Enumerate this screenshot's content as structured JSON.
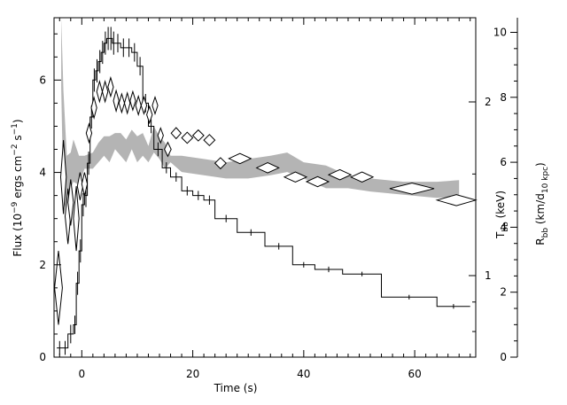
{
  "chart_data": {
    "type": "line",
    "xlabel": "Time (s)",
    "ylabel_left": {
      "main": "Flux (10",
      "sup1": "−9",
      "mid": " ergs cm",
      "sup2": "−2",
      "mid2": " s",
      "sup3": "−1",
      "end": ")"
    },
    "ylabel_right1": {
      "main": "T",
      "sub": "bb",
      "end": " (keV)"
    },
    "ylabel_right2": {
      "main": "R",
      "sub": "bb",
      "mid": " (km/d",
      "sub2": "10 kpc",
      "end": ")"
    },
    "xlim": [
      -5,
      71
    ],
    "ylim_flux": [
      0,
      7.35
    ],
    "ylim_R": [
      0,
      10.45
    ],
    "T_scale": "log",
    "T_ticks": [
      {
        "v": 1,
        "label": "1"
      },
      {
        "v": 2,
        "label": "2"
      }
    ],
    "x_ticks": [
      {
        "v": 0,
        "label": "0"
      },
      {
        "v": 20,
        "label": "20"
      },
      {
        "v": 40,
        "label": "40"
      },
      {
        "v": 60,
        "label": "60"
      }
    ],
    "flux_ticks": [
      {
        "v": 0,
        "label": "0"
      },
      {
        "v": 2,
        "label": "2"
      },
      {
        "v": 4,
        "label": "4"
      },
      {
        "v": 6,
        "label": "6"
      }
    ],
    "R_ticks": [
      {
        "v": 0,
        "label": "0"
      },
      {
        "v": 2,
        "label": "2"
      },
      {
        "v": 4,
        "label": "4"
      },
      {
        "v": 6,
        "label": "6"
      },
      {
        "v": 8,
        "label": "8"
      },
      {
        "v": 10,
        "label": "10"
      }
    ],
    "series": [
      {
        "kind": "flux_histogram",
        "color": "#000000",
        "bins": [
          [
            -4.5,
            -3.5,
            0.2
          ],
          [
            -3.5,
            -2.5,
            0.2
          ],
          [
            -2.5,
            -1.5,
            0.5
          ],
          [
            -1.5,
            -1.0,
            0.7
          ],
          [
            -1.0,
            -0.5,
            1.6
          ],
          [
            -0.5,
            0.0,
            2.3
          ],
          [
            0.0,
            0.5,
            3.3
          ],
          [
            0.5,
            1.0,
            3.5
          ],
          [
            1.0,
            1.5,
            4.2
          ],
          [
            1.5,
            2.0,
            5.2
          ],
          [
            2.0,
            2.5,
            6.0
          ],
          [
            2.5,
            3.0,
            6.2
          ],
          [
            3.0,
            3.5,
            6.4
          ],
          [
            3.5,
            4.0,
            6.6
          ],
          [
            4.0,
            4.5,
            6.8
          ],
          [
            4.5,
            5.0,
            6.9
          ],
          [
            5.0,
            5.5,
            6.9
          ],
          [
            5.5,
            6.0,
            6.8
          ],
          [
            6.0,
            7.0,
            6.8
          ],
          [
            7.0,
            8.0,
            6.7
          ],
          [
            8.0,
            9.0,
            6.7
          ],
          [
            9.0,
            10.0,
            6.6
          ],
          [
            10.0,
            11.0,
            6.3
          ],
          [
            11.0,
            12.0,
            5.5
          ],
          [
            12.0,
            13.0,
            5.0
          ],
          [
            13.0,
            14.5,
            4.5
          ],
          [
            14.5,
            16.0,
            4.1
          ],
          [
            16.0,
            18.0,
            3.9
          ],
          [
            18.0,
            20.0,
            3.6
          ],
          [
            20.0,
            22.0,
            3.5
          ],
          [
            22.0,
            24.0,
            3.4
          ],
          [
            24.0,
            28.0,
            3.0
          ],
          [
            28.0,
            33.0,
            2.7
          ],
          [
            33.0,
            38.0,
            2.4
          ],
          [
            38.0,
            42.0,
            2.0
          ],
          [
            42.0,
            47.0,
            1.9
          ],
          [
            47.0,
            54.0,
            1.8
          ],
          [
            54.0,
            64.0,
            1.3
          ],
          [
            64.0,
            70.0,
            1.1
          ]
        ],
        "errors": [
          [
            -4.0,
            0.15
          ],
          [
            -3.0,
            0.15
          ],
          [
            -2.0,
            0.2
          ],
          [
            -1.25,
            0.2
          ],
          [
            -0.75,
            0.25
          ],
          [
            -0.25,
            0.25
          ],
          [
            0.25,
            0.25
          ],
          [
            0.75,
            0.25
          ],
          [
            1.25,
            0.25
          ],
          [
            1.75,
            0.25
          ],
          [
            2.25,
            0.25
          ],
          [
            2.75,
            0.25
          ],
          [
            3.25,
            0.25
          ],
          [
            3.75,
            0.25
          ],
          [
            4.25,
            0.25
          ],
          [
            4.75,
            0.25
          ],
          [
            5.25,
            0.25
          ],
          [
            5.75,
            0.25
          ],
          [
            6.5,
            0.2
          ],
          [
            7.5,
            0.2
          ],
          [
            8.5,
            0.2
          ],
          [
            9.5,
            0.2
          ],
          [
            10.5,
            0.2
          ],
          [
            11.5,
            0.2
          ],
          [
            12.5,
            0.15
          ],
          [
            13.75,
            0.15
          ],
          [
            15.25,
            0.12
          ],
          [
            17.0,
            0.1
          ],
          [
            19.0,
            0.1
          ],
          [
            21.0,
            0.1
          ],
          [
            23.0,
            0.1
          ],
          [
            26.0,
            0.08
          ],
          [
            30.5,
            0.07
          ],
          [
            35.5,
            0.07
          ],
          [
            40.0,
            0.06
          ],
          [
            44.5,
            0.06
          ],
          [
            50.5,
            0.05
          ],
          [
            59.0,
            0.05
          ],
          [
            67.0,
            0.05
          ]
        ]
      },
      {
        "kind": "temperature_diamonds",
        "color": "#000000",
        "points": [
          [
            -4.2,
            1.5,
            0.7,
            0.8
          ],
          [
            -3.3,
            3.9,
            0.5,
            0.8
          ],
          [
            -2.5,
            3.05,
            0.5,
            0.6
          ],
          [
            -2.0,
            3.35,
            0.5,
            0.5
          ],
          [
            -1.0,
            3.0,
            0.5,
            0.7
          ],
          [
            -0.3,
            3.7,
            0.5,
            0.3
          ],
          [
            0.5,
            3.75,
            0.5,
            0.25
          ],
          [
            1.3,
            4.85,
            0.5,
            0.2
          ],
          [
            2.2,
            5.4,
            0.5,
            0.22
          ],
          [
            3.2,
            5.75,
            0.5,
            0.22
          ],
          [
            4.2,
            5.75,
            0.5,
            0.22
          ],
          [
            5.2,
            5.85,
            0.5,
            0.2
          ],
          [
            6.2,
            5.55,
            0.5,
            0.22
          ],
          [
            7.2,
            5.5,
            0.5,
            0.2
          ],
          [
            8.2,
            5.5,
            0.5,
            0.22
          ],
          [
            9.2,
            5.55,
            0.5,
            0.2
          ],
          [
            10.2,
            5.45,
            0.5,
            0.2
          ],
          [
            11.2,
            5.45,
            0.5,
            0.18
          ],
          [
            12.2,
            5.25,
            0.5,
            0.18
          ],
          [
            13.2,
            5.45,
            0.5,
            0.18
          ],
          [
            14.2,
            4.8,
            0.5,
            0.16
          ],
          [
            15.5,
            4.5,
            0.6,
            0.15
          ],
          [
            17.0,
            4.85,
            0.9,
            0.12
          ],
          [
            19.0,
            4.75,
            1.0,
            0.12
          ],
          [
            21.0,
            4.8,
            1.0,
            0.12
          ],
          [
            23.0,
            4.7,
            1.0,
            0.12
          ],
          [
            25.0,
            4.2,
            1.0,
            0.12
          ],
          [
            28.5,
            4.3,
            2.0,
            0.11
          ],
          [
            33.5,
            4.1,
            2.0,
            0.11
          ],
          [
            38.5,
            3.9,
            2.0,
            0.11
          ],
          [
            42.5,
            3.8,
            2.0,
            0.11
          ],
          [
            46.5,
            3.95,
            2.0,
            0.11
          ],
          [
            50.5,
            3.9,
            2.0,
            0.11
          ],
          [
            59.5,
            3.65,
            4.0,
            0.12
          ],
          [
            67.5,
            3.4,
            3.5,
            0.12
          ]
        ]
      },
      {
        "kind": "radius_band",
        "color": "#b4b4b4",
        "band": [
          [
            -3.7,
            8.3,
            10.45
          ],
          [
            -3.3,
            4.8,
            8.2
          ],
          [
            -2.7,
            4.5,
            6.2
          ],
          [
            -2.0,
            5.2,
            6.3
          ],
          [
            -1.5,
            5.4,
            6.7
          ],
          [
            -0.5,
            5.3,
            6.2
          ],
          [
            0.5,
            5.8,
            6.2
          ],
          [
            2.0,
            5.8,
            6.3
          ],
          [
            3.0,
            6.0,
            6.6
          ],
          [
            4.0,
            6.2,
            6.8
          ],
          [
            5.0,
            6.0,
            6.8
          ],
          [
            6.0,
            6.4,
            6.9
          ],
          [
            7.0,
            6.2,
            6.9
          ],
          [
            8.0,
            6.0,
            6.7
          ],
          [
            9.0,
            6.4,
            7.0
          ],
          [
            10.0,
            6.0,
            6.8
          ],
          [
            11.0,
            6.2,
            6.9
          ],
          [
            12.0,
            6.0,
            6.5
          ],
          [
            13.0,
            6.3,
            7.1
          ],
          [
            14.0,
            6.1,
            6.8
          ],
          [
            15.0,
            5.8,
            6.6
          ],
          [
            16.0,
            6.0,
            6.2
          ],
          [
            18.0,
            5.7,
            6.2
          ],
          [
            22.0,
            5.6,
            6.1
          ],
          [
            26.0,
            5.5,
            6.0
          ],
          [
            30.0,
            5.5,
            6.1
          ],
          [
            34.0,
            5.6,
            6.2
          ],
          [
            37.0,
            5.7,
            6.3
          ],
          [
            40.0,
            5.5,
            6.0
          ],
          [
            44.0,
            5.2,
            5.9
          ],
          [
            48.0,
            5.2,
            5.6
          ],
          [
            52.0,
            5.1,
            5.5
          ],
          [
            58.0,
            5.0,
            5.4
          ],
          [
            64.0,
            4.9,
            5.4
          ],
          [
            68.0,
            4.95,
            5.45
          ]
        ]
      }
    ]
  }
}
